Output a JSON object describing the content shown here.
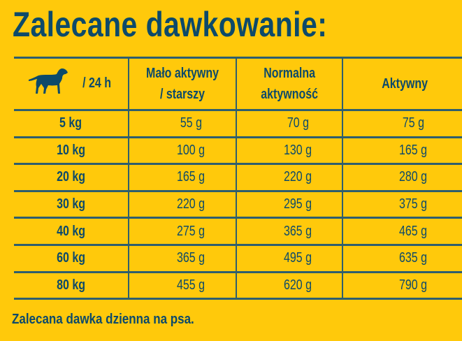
{
  "title": "Zalecane dawkowanie:",
  "table": {
    "corner": {
      "icon": "dog-icon",
      "label": "/  24 h"
    },
    "columns": [
      {
        "line1": "Mało aktywny",
        "line2": "/ starszy"
      },
      {
        "line1": "Normalna",
        "line2": "aktywność"
      },
      {
        "line1": "Aktywny",
        "line2": ""
      }
    ],
    "rows": [
      {
        "weight": "5 kg",
        "values": [
          "55 g",
          "70 g",
          "75 g"
        ]
      },
      {
        "weight": "10 kg",
        "values": [
          "100 g",
          "130 g",
          "165 g"
        ]
      },
      {
        "weight": "20 kg",
        "values": [
          "165 g",
          "220 g",
          "280 g"
        ]
      },
      {
        "weight": "30 kg",
        "values": [
          "220 g",
          "295 g",
          "375 g"
        ]
      },
      {
        "weight": "40 kg",
        "values": [
          "275 g",
          "365 g",
          "465 g"
        ]
      },
      {
        "weight": "60 kg",
        "values": [
          "365 g",
          "495 g",
          "635 g"
        ]
      },
      {
        "weight": "80 kg",
        "values": [
          "455 g",
          "620 g",
          "790 g"
        ]
      }
    ]
  },
  "footer": "Zalecana dawka dzienna na psa.",
  "colors": {
    "background": "#FFC90B",
    "text": "#0D4A6A"
  }
}
